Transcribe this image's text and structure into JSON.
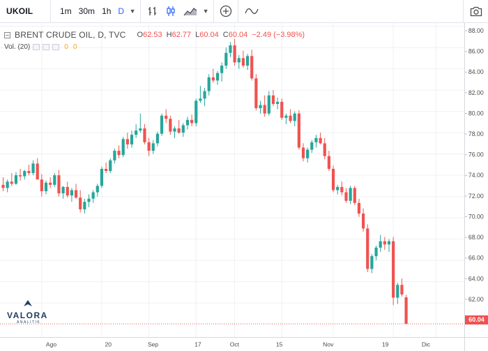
{
  "toolbar": {
    "symbol": "UKOIL",
    "timeframes": [
      "1m",
      "30m",
      "1h",
      "D"
    ],
    "active_timeframe": "D"
  },
  "legend": {
    "title": "BRENT CRUDE OIL, D, TVC",
    "open_label": "O",
    "open": "62.53",
    "high_label": "H",
    "high": "62.77",
    "low_label": "L",
    "low": "60.04",
    "close_label": "C",
    "close": "60.04",
    "change": "−2.49 (−3.98%)"
  },
  "volume": {
    "label": "Vol. (20)",
    "value_a": "0",
    "value_b": "0"
  },
  "logo": {
    "name": "VALORA",
    "tagline": "ANALITIK"
  },
  "last_price_label": "60.04",
  "colors": {
    "up": "#26a69a",
    "down": "#ef5350",
    "grid": "#eef0f3",
    "axis_text": "#4a4a4a"
  },
  "chart_data": {
    "type": "candlestick",
    "y_range": [
      58.8,
      88.3
    ],
    "y_ticks": [
      62,
      64,
      66,
      68,
      70,
      72,
      74,
      76,
      78,
      80,
      82,
      84,
      86,
      88
    ],
    "y_tick_labels": [
      "62.00",
      "64.00",
      "66.00",
      "68.00",
      "70.00",
      "72.00",
      "74.00",
      "76.00",
      "78.00",
      "80.00",
      "82.00",
      "84.00",
      "86.00",
      "88.00"
    ],
    "x_tick_labels": [
      "Ago",
      "20",
      "Sep",
      "17",
      "Oct",
      "15",
      "Nov",
      "19",
      "Dic"
    ],
    "x_tick_index": [
      9,
      23,
      34,
      45,
      54,
      65,
      77,
      91,
      101
    ],
    "last_price": 60.04,
    "candles": [
      [
        73.1,
        73.8,
        72.5,
        72.8
      ],
      [
        72.8,
        73.6,
        72.4,
        73.4
      ],
      [
        73.4,
        74.2,
        73.0,
        73.2
      ],
      [
        73.2,
        74.3,
        73.1,
        74.0
      ],
      [
        74.0,
        74.6,
        73.5,
        73.9
      ],
      [
        73.9,
        74.5,
        73.6,
        74.4
      ],
      [
        74.4,
        75.0,
        74.0,
        74.2
      ],
      [
        74.2,
        75.4,
        74.0,
        75.1
      ],
      [
        75.1,
        75.6,
        73.6,
        73.6
      ],
      [
        73.6,
        74.1,
        72.0,
        72.5
      ],
      [
        72.5,
        73.5,
        72.2,
        73.3
      ],
      [
        73.3,
        73.8,
        72.8,
        73.1
      ],
      [
        73.1,
        74.2,
        72.9,
        74.0
      ],
      [
        74.0,
        74.5,
        72.0,
        72.3
      ],
      [
        72.3,
        73.0,
        71.8,
        72.9
      ],
      [
        72.9,
        73.4,
        71.9,
        72.1
      ],
      [
        72.1,
        72.8,
        71.5,
        72.6
      ],
      [
        72.6,
        73.2,
        71.8,
        71.9
      ],
      [
        71.9,
        72.6,
        70.5,
        70.8
      ],
      [
        70.8,
        71.8,
        70.4,
        71.5
      ],
      [
        71.5,
        72.2,
        71.0,
        71.8
      ],
      [
        71.8,
        72.6,
        71.4,
        72.4
      ],
      [
        72.4,
        73.2,
        72.0,
        73.0
      ],
      [
        73.0,
        74.8,
        72.8,
        74.6
      ],
      [
        74.6,
        75.2,
        74.2,
        74.4
      ],
      [
        74.4,
        75.6,
        74.2,
        75.4
      ],
      [
        75.4,
        76.5,
        75.1,
        76.3
      ],
      [
        76.3,
        76.8,
        75.6,
        75.9
      ],
      [
        75.9,
        77.6,
        75.7,
        77.4
      ],
      [
        77.4,
        78.0,
        76.5,
        76.9
      ],
      [
        76.9,
        78.2,
        76.6,
        77.8
      ],
      [
        77.8,
        78.8,
        77.5,
        78.2
      ],
      [
        78.2,
        79.8,
        78.0,
        78.4
      ],
      [
        78.4,
        78.8,
        76.9,
        77.1
      ],
      [
        77.1,
        77.5,
        75.8,
        76.3
      ],
      [
        76.3,
        77.3,
        76.0,
        77.0
      ],
      [
        77.0,
        78.1,
        76.7,
        77.9
      ],
      [
        77.9,
        79.8,
        77.7,
        79.6
      ],
      [
        79.6,
        80.2,
        78.9,
        79.3
      ],
      [
        79.3,
        79.6,
        77.8,
        78.1
      ],
      [
        78.1,
        78.6,
        77.5,
        78.4
      ],
      [
        78.4,
        79.2,
        77.9,
        78.0
      ],
      [
        78.0,
        78.9,
        77.6,
        78.7
      ],
      [
        78.7,
        79.5,
        78.3,
        79.2
      ],
      [
        79.2,
        79.7,
        78.6,
        78.9
      ],
      [
        78.9,
        81.2,
        78.6,
        81.0
      ],
      [
        81.0,
        82.4,
        80.8,
        81.2
      ],
      [
        81.2,
        82.2,
        80.5,
        81.9
      ],
      [
        81.9,
        83.5,
        81.5,
        83.2
      ],
      [
        83.2,
        84.0,
        82.7,
        82.9
      ],
      [
        82.9,
        83.8,
        82.5,
        83.6
      ],
      [
        83.6,
        84.6,
        82.8,
        84.3
      ],
      [
        84.3,
        86.0,
        84.0,
        85.5
      ],
      [
        85.5,
        86.5,
        85.1,
        86.2
      ],
      [
        86.2,
        86.8,
        84.3,
        84.6
      ],
      [
        84.6,
        85.3,
        84.0,
        85.0
      ],
      [
        85.0,
        85.7,
        84.1,
        84.3
      ],
      [
        84.3,
        85.4,
        83.9,
        85.2
      ],
      [
        85.2,
        85.8,
        82.9,
        83.1
      ],
      [
        83.1,
        83.5,
        80.1,
        80.3
      ],
      [
        80.3,
        81.0,
        79.8,
        80.6
      ],
      [
        80.6,
        81.5,
        79.5,
        79.8
      ],
      [
        79.8,
        81.9,
        79.6,
        81.5
      ],
      [
        81.5,
        82.0,
        80.5,
        80.7
      ],
      [
        80.7,
        81.3,
        80.2,
        80.9
      ],
      [
        80.9,
        81.2,
        79.2,
        79.4
      ],
      [
        79.4,
        79.8,
        78.8,
        79.6
      ],
      [
        79.6,
        80.2,
        78.9,
        79.1
      ],
      [
        79.1,
        80.0,
        78.6,
        79.8
      ],
      [
        79.8,
        80.1,
        76.4,
        76.6
      ],
      [
        76.6,
        77.0,
        75.3,
        75.6
      ],
      [
        75.6,
        76.6,
        75.2,
        76.4
      ],
      [
        76.4,
        77.3,
        76.1,
        77.1
      ],
      [
        77.1,
        77.8,
        76.6,
        77.5
      ],
      [
        77.5,
        78.0,
        76.9,
        77.0
      ],
      [
        77.0,
        77.5,
        75.5,
        75.8
      ],
      [
        75.8,
        76.3,
        74.4,
        74.6
      ],
      [
        74.6,
        74.9,
        72.4,
        72.6
      ],
      [
        72.6,
        73.1,
        72.2,
        72.9
      ],
      [
        72.9,
        73.4,
        72.1,
        72.4
      ],
      [
        72.4,
        72.8,
        71.4,
        71.6
      ],
      [
        71.6,
        73.0,
        71.3,
        72.8
      ],
      [
        72.8,
        73.0,
        71.2,
        71.4
      ],
      [
        71.4,
        71.8,
        70.1,
        70.4
      ],
      [
        70.4,
        70.9,
        68.7,
        69.0
      ],
      [
        69.0,
        69.4,
        64.9,
        65.2
      ],
      [
        65.2,
        66.6,
        64.8,
        66.4
      ],
      [
        66.4,
        67.4,
        66.0,
        67.2
      ],
      [
        67.2,
        68.4,
        66.8,
        67.8
      ],
      [
        67.8,
        68.2,
        67.0,
        67.5
      ],
      [
        67.5,
        68.0,
        66.8,
        67.8
      ],
      [
        67.8,
        68.2,
        61.8,
        62.5
      ],
      [
        62.5,
        63.9,
        61.9,
        63.7
      ],
      [
        63.7,
        64.3,
        62.6,
        62.8
      ],
      [
        62.53,
        62.77,
        60.04,
        60.04
      ]
    ]
  }
}
